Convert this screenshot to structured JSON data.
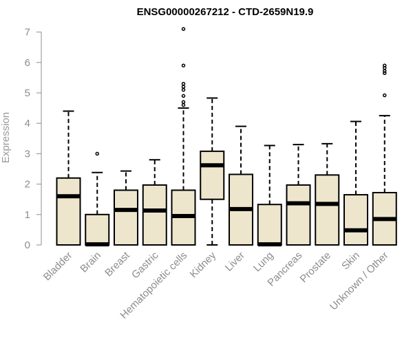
{
  "chart_data": {
    "type": "boxplot",
    "title": "ENSG00000267212 - CTD-2659N19.9",
    "xlabel": "",
    "ylabel": "Expression",
    "ylim": [
      0,
      7
    ],
    "yticks": [
      "0",
      "1",
      "2",
      "3",
      "4",
      "5",
      "6",
      "7"
    ],
    "box_fill": "#ede6cd",
    "categories": [
      "Bladder",
      "Brain",
      "Breast",
      "Gastric",
      "Hematopoietic cells",
      "Kidney",
      "Liver",
      "Lung",
      "Pancreas",
      "Prostate",
      "Skin",
      "Unknown / Other"
    ],
    "boxes": [
      {
        "min": 0,
        "q1": 0,
        "median": 1.6,
        "q3": 2.2,
        "max": 4.4,
        "outliers": []
      },
      {
        "min": 0,
        "q1": 0,
        "median": 0.02,
        "q3": 1.0,
        "max": 2.38,
        "outliers": [
          3.0
        ]
      },
      {
        "min": 0,
        "q1": 0,
        "median": 1.15,
        "q3": 1.8,
        "max": 2.43,
        "outliers": []
      },
      {
        "min": 0,
        "q1": 0,
        "median": 1.13,
        "q3": 1.97,
        "max": 2.8,
        "outliers": []
      },
      {
        "min": 0,
        "q1": 0,
        "median": 0.95,
        "q3": 1.8,
        "max": 4.5,
        "outliers": [
          4.6,
          4.7,
          4.9,
          5.1,
          5.2,
          5.3,
          5.9,
          7.1
        ]
      },
      {
        "min": 0,
        "q1": 1.5,
        "median": 2.62,
        "q3": 3.08,
        "max": 4.83,
        "outliers": []
      },
      {
        "min": 0,
        "q1": 0,
        "median": 1.18,
        "q3": 2.32,
        "max": 3.9,
        "outliers": []
      },
      {
        "min": 0,
        "q1": 0,
        "median": 0.02,
        "q3": 1.33,
        "max": 3.27,
        "outliers": []
      },
      {
        "min": 0,
        "q1": 0,
        "median": 1.37,
        "q3": 1.97,
        "max": 3.3,
        "outliers": []
      },
      {
        "min": 0,
        "q1": 0,
        "median": 1.35,
        "q3": 2.3,
        "max": 3.33,
        "outliers": []
      },
      {
        "min": 0,
        "q1": 0,
        "median": 0.48,
        "q3": 1.65,
        "max": 4.06,
        "outliers": []
      },
      {
        "min": 0,
        "q1": 0,
        "median": 0.85,
        "q3": 1.72,
        "max": 4.25,
        "outliers": [
          4.92,
          5.65,
          5.72,
          5.82,
          5.9
        ]
      }
    ]
  }
}
